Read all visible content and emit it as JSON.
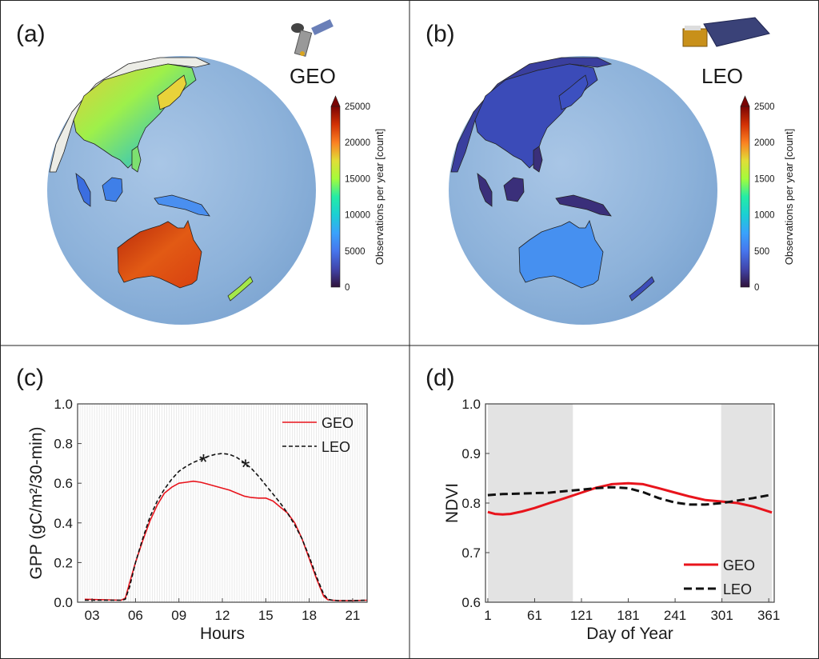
{
  "panels": {
    "a": {
      "label": "(a)",
      "satellite": "GEO",
      "icon": "geostationary-satellite-icon",
      "colorbar": {
        "label": "Observations per year [count]",
        "ticks": [
          "0",
          "5000",
          "10000",
          "15000",
          "20000",
          "25000"
        ],
        "min": 0,
        "max": 25000,
        "extend": "max",
        "colormap": "turbo"
      }
    },
    "b": {
      "label": "(b)",
      "satellite": "LEO",
      "icon": "polar-orbiting-satellite-icon",
      "colorbar": {
        "label": "Observations per year [count]",
        "ticks": [
          "0",
          "500",
          "1000",
          "1500",
          "2000",
          "2500"
        ],
        "min": 0,
        "max": 2500,
        "extend": "max",
        "colormap": "turbo"
      }
    },
    "c": {
      "label": "(c)"
    },
    "d": {
      "label": "(d)"
    }
  },
  "colors": {
    "geo": "#e8141c",
    "leo": "#111111",
    "ocean": "#8fb3d9",
    "shade": "#e3e3e3"
  },
  "chart_data": [
    {
      "type": "line",
      "panel": "c",
      "xlabel": "Hours",
      "ylabel": "GPP (gC/m²/30-min)",
      "xlim": [
        2,
        22
      ],
      "ylim": [
        0,
        1.0
      ],
      "xticks": [
        3,
        6,
        9,
        12,
        15,
        18,
        21
      ],
      "xtick_labels": [
        "03",
        "06",
        "09",
        "12",
        "15",
        "18",
        "21"
      ],
      "yticks": [
        0,
        0.2,
        0.4,
        0.6,
        0.8,
        1.0
      ],
      "ytick_labels": [
        "0.0",
        "0.2",
        "0.4",
        "0.6",
        "0.8",
        "1.0"
      ],
      "grid": "dense vertical",
      "legend": "top-right",
      "series": [
        {
          "name": "GEO",
          "style": "solid",
          "x": [
            2.5,
            4,
            5,
            5.3,
            5.6,
            6,
            6.5,
            7,
            7.5,
            8,
            8.5,
            9,
            9.5,
            10,
            10.5,
            11,
            11.5,
            12,
            12.5,
            13,
            13.5,
            14,
            14.5,
            15,
            15.5,
            16,
            16.5,
            17,
            17.5,
            18,
            18.5,
            19,
            19.3,
            19.6,
            20,
            21,
            22
          ],
          "y": [
            0.015,
            0.012,
            0.01,
            0.02,
            0.1,
            0.2,
            0.31,
            0.41,
            0.49,
            0.55,
            0.58,
            0.6,
            0.605,
            0.61,
            0.605,
            0.595,
            0.585,
            0.575,
            0.565,
            0.55,
            0.535,
            0.528,
            0.525,
            0.525,
            0.51,
            0.48,
            0.45,
            0.4,
            0.32,
            0.22,
            0.12,
            0.03,
            0.012,
            0.01,
            0.008,
            0.008,
            0.01
          ]
        },
        {
          "name": "LEO",
          "style": "dashed",
          "x": [
            2.5,
            4,
            5,
            5.3,
            5.6,
            6,
            6.5,
            7,
            7.5,
            8,
            8.5,
            9,
            9.5,
            10,
            10.5,
            11,
            11.5,
            12,
            12.5,
            13,
            13.5,
            14,
            14.5,
            15,
            15.5,
            16,
            16.5,
            17,
            17.5,
            18,
            18.5,
            19,
            19.3,
            19.6,
            20,
            21,
            22
          ],
          "y": [
            0.01,
            0.01,
            0.01,
            0.015,
            0.08,
            0.2,
            0.32,
            0.43,
            0.51,
            0.57,
            0.62,
            0.66,
            0.685,
            0.705,
            0.72,
            0.735,
            0.745,
            0.75,
            0.745,
            0.73,
            0.705,
            0.675,
            0.635,
            0.59,
            0.545,
            0.5,
            0.45,
            0.39,
            0.32,
            0.23,
            0.13,
            0.04,
            0.015,
            0.01,
            0.008,
            0.008,
            0.01
          ]
        }
      ],
      "annotations": [
        {
          "text": "*",
          "x": 10.7,
          "y": 0.725
        },
        {
          "text": "*",
          "x": 13.6,
          "y": 0.7
        }
      ]
    },
    {
      "type": "line",
      "panel": "d",
      "xlabel": "Day of Year",
      "ylabel": "NDVI",
      "xlim": [
        -2,
        368
      ],
      "ylim": [
        0.6,
        1.0
      ],
      "xticks": [
        1,
        61,
        121,
        181,
        241,
        301,
        361
      ],
      "xtick_labels": [
        "1",
        "61",
        "121",
        "181",
        "241",
        "301",
        "361"
      ],
      "yticks": [
        0.6,
        0.7,
        0.8,
        0.9,
        1.0
      ],
      "ytick_labels": [
        "0.6",
        "0.7",
        "0.8",
        "0.9",
        "1.0"
      ],
      "shaded_ranges": [
        [
          1,
          110
        ],
        [
          300,
          365
        ]
      ],
      "legend": "bottom-right",
      "series": [
        {
          "name": "GEO",
          "style": "solid",
          "x": [
            1,
            10,
            20,
            30,
            45,
            61,
            80,
            100,
            121,
            140,
            160,
            181,
            200,
            220,
            241,
            260,
            280,
            301,
            321,
            341,
            365
          ],
          "y": [
            0.782,
            0.778,
            0.777,
            0.778,
            0.783,
            0.79,
            0.8,
            0.81,
            0.821,
            0.831,
            0.838,
            0.84,
            0.838,
            0.83,
            0.821,
            0.813,
            0.806,
            0.803,
            0.8,
            0.793,
            0.781
          ]
        },
        {
          "name": "LEO",
          "style": "dashed",
          "x": [
            1,
            20,
            40,
            61,
            80,
            100,
            121,
            140,
            160,
            181,
            200,
            220,
            241,
            260,
            280,
            301,
            321,
            341,
            365
          ],
          "y": [
            0.816,
            0.818,
            0.819,
            0.82,
            0.821,
            0.824,
            0.827,
            0.83,
            0.832,
            0.83,
            0.822,
            0.81,
            0.801,
            0.797,
            0.797,
            0.8,
            0.805,
            0.81,
            0.817
          ]
        }
      ]
    }
  ]
}
